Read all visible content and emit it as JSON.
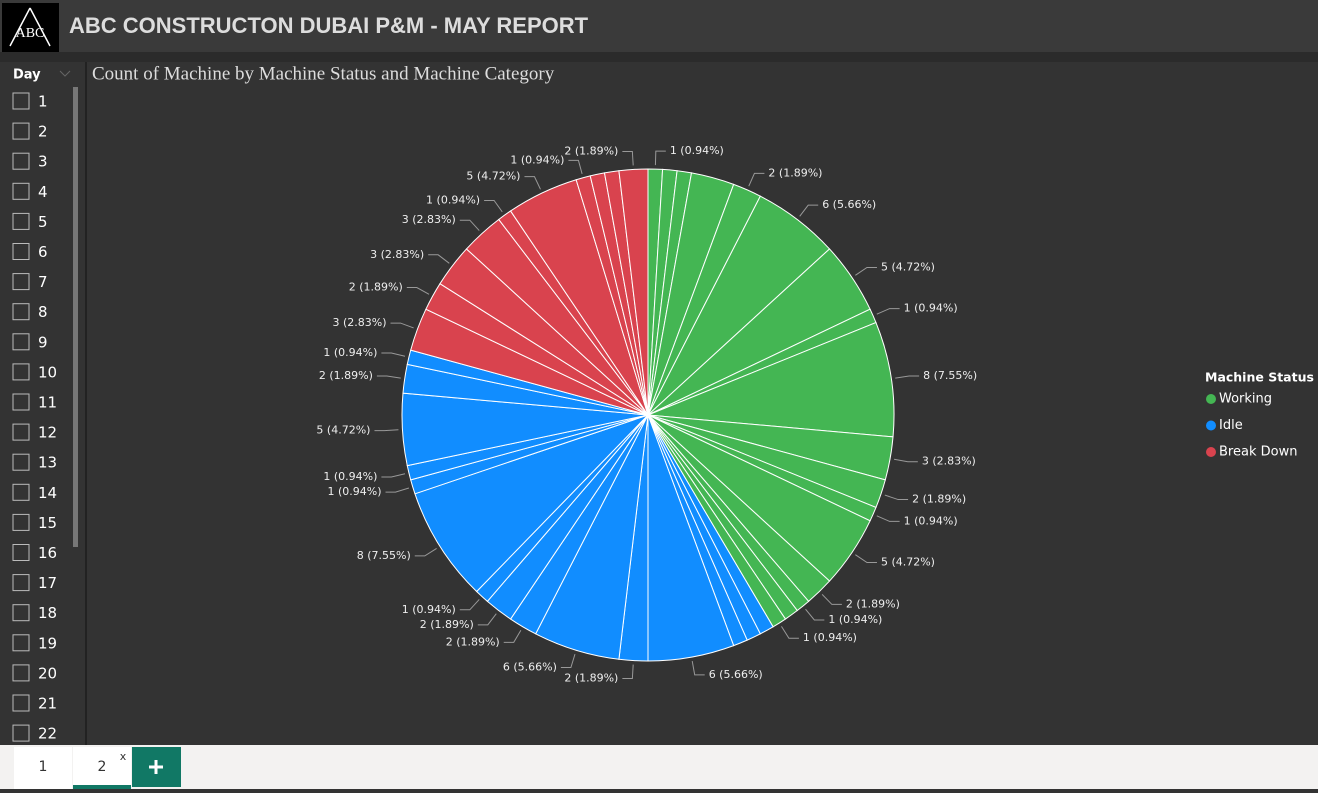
{
  "header": {
    "logo": "ABC",
    "title": "ABC CONSTRUCTON DUBAI P&M - MAY REPORT"
  },
  "slicer": {
    "title": "Day",
    "items": [
      "1",
      "2",
      "3",
      "4",
      "5",
      "6",
      "7",
      "8",
      "9",
      "10",
      "11",
      "12",
      "13",
      "14",
      "15",
      "16",
      "17",
      "18",
      "19",
      "20",
      "21",
      "22"
    ]
  },
  "chart_data": {
    "type": "pie",
    "title": "Count of Machine by Machine Status and Machine Category",
    "legend_title": "Machine Status",
    "legend": "right",
    "series": [
      {
        "name": "Working",
        "color": "#44b653",
        "values": [
          1,
          1,
          1,
          3,
          2,
          6,
          5,
          1,
          8,
          3,
          2,
          1,
          5,
          2,
          1,
          1,
          1
        ],
        "value_labels": [
          "1 (0.94%)",
          null,
          null,
          null,
          "2 (1.89%)",
          "6 (5.66%)",
          "5 (4.72%)",
          "1 (0.94%)",
          "8 (7.55%)",
          "3 (2.83%)",
          "2 (1.89%)",
          "1 (0.94%)",
          "5 (4.72%)",
          "2 (1.89%)",
          "1 (0.94%)",
          null,
          "1 (0.94%)"
        ]
      },
      {
        "name": "Idle",
        "color": "#118dff",
        "values": [
          1,
          1,
          1,
          6,
          2,
          6,
          2,
          2,
          1,
          8,
          1,
          1,
          5,
          2,
          1
        ],
        "value_labels": [
          null,
          null,
          null,
          "6 (5.66%)",
          "2 (1.89%)",
          "6 (5.66%)",
          "2 (1.89%)",
          "2 (1.89%)",
          "1 (0.94%)",
          "8 (7.55%)",
          "1 (0.94%)",
          "1 (0.94%)",
          "5 (4.72%)",
          "2 (1.89%)",
          "1 (0.94%)"
        ]
      },
      {
        "name": "Break Down",
        "color": "#d9434e",
        "values": [
          3,
          2,
          3,
          3,
          1,
          5,
          1,
          1,
          1,
          2
        ],
        "value_labels": [
          "3 (2.83%)",
          "2 (1.89%)",
          "3 (2.83%)",
          "3 (2.83%)",
          "1 (0.94%)",
          "5 (4.72%)",
          "1 (0.94%)",
          null,
          null,
          "2 (1.89%)"
        ]
      }
    ]
  },
  "tabs": [
    "1",
    "2"
  ]
}
